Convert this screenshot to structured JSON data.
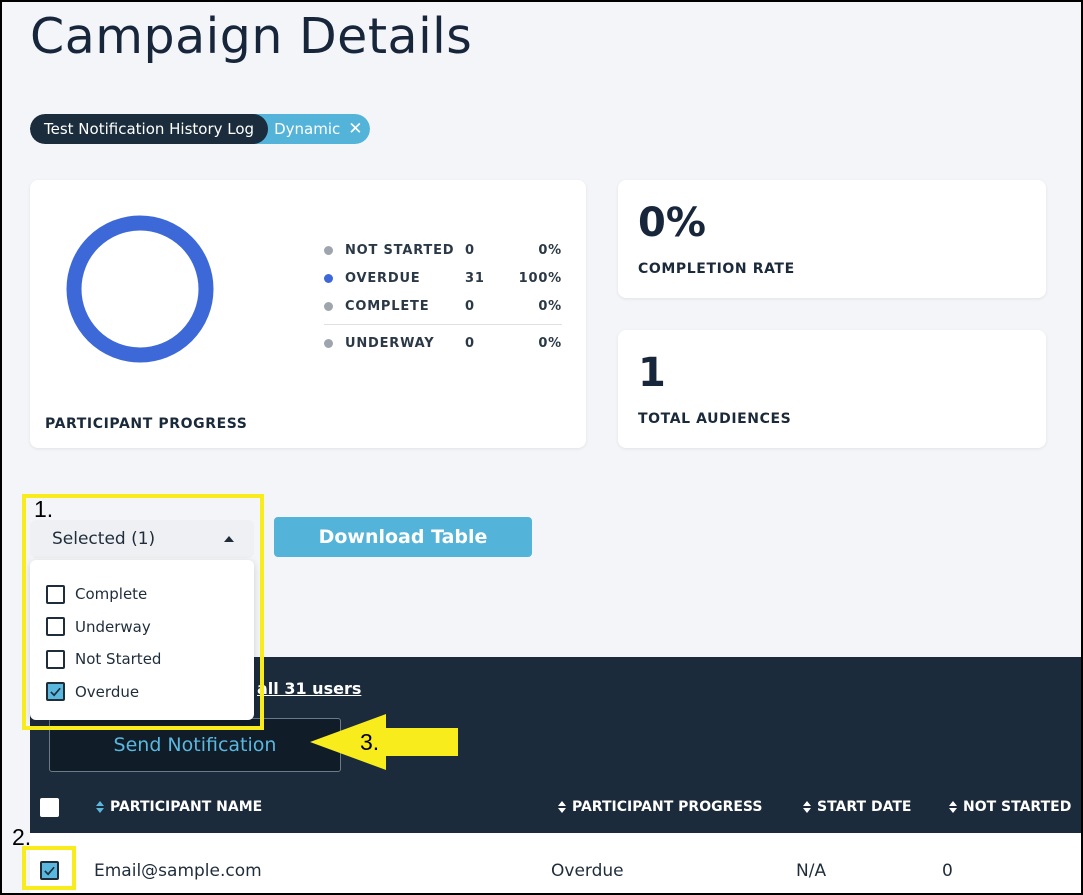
{
  "page": {
    "title": "Campaign Details"
  },
  "breadcrumb": {
    "campaign": "Test Notification History Log",
    "type": "Dynamic",
    "close_icon": "close-icon"
  },
  "progress_card": {
    "label": "PARTICIPANT PROGRESS",
    "legend": [
      {
        "label": "NOT STARTED",
        "count": "0",
        "percent": "0%",
        "color": "#9ea5ad"
      },
      {
        "label": "OVERDUE",
        "count": "31",
        "percent": "100%",
        "color": "#3d68d8"
      },
      {
        "label": "COMPLETE",
        "count": "0",
        "percent": "0%",
        "color": "#9ea5ad"
      },
      {
        "label": "UNDERWAY",
        "count": "0",
        "percent": "0%",
        "color": "#9ea5ad"
      }
    ],
    "donut_color": "#3d68d8"
  },
  "completion_card": {
    "value": "0%",
    "label": "COMPLETION RATE"
  },
  "audiences_card": {
    "value": "1",
    "label": "TOTAL AUDIENCES"
  },
  "filter_dropdown": {
    "selected_label": "Selected (1)",
    "options": [
      {
        "label": "Complete",
        "checked": false
      },
      {
        "label": "Underway",
        "checked": false
      },
      {
        "label": "Not Started",
        "checked": false
      },
      {
        "label": "Overdue",
        "checked": true
      }
    ]
  },
  "toolbar": {
    "download_label": "Download Table"
  },
  "table_panel": {
    "select_all_link": "all 31 users",
    "send_button": "Send Notification",
    "columns": [
      "PARTICIPANT NAME",
      "PARTICIPANT PROGRESS",
      "START DATE",
      "NOT STARTED"
    ],
    "rows": [
      {
        "name": "Email@sample.com",
        "progress": "Overdue",
        "start_date": "N/A",
        "not_started": "0",
        "checked": true
      }
    ]
  },
  "annotations": {
    "one": "1.",
    "two": "2.",
    "three": "3.",
    "color": "#f8ec1c"
  }
}
